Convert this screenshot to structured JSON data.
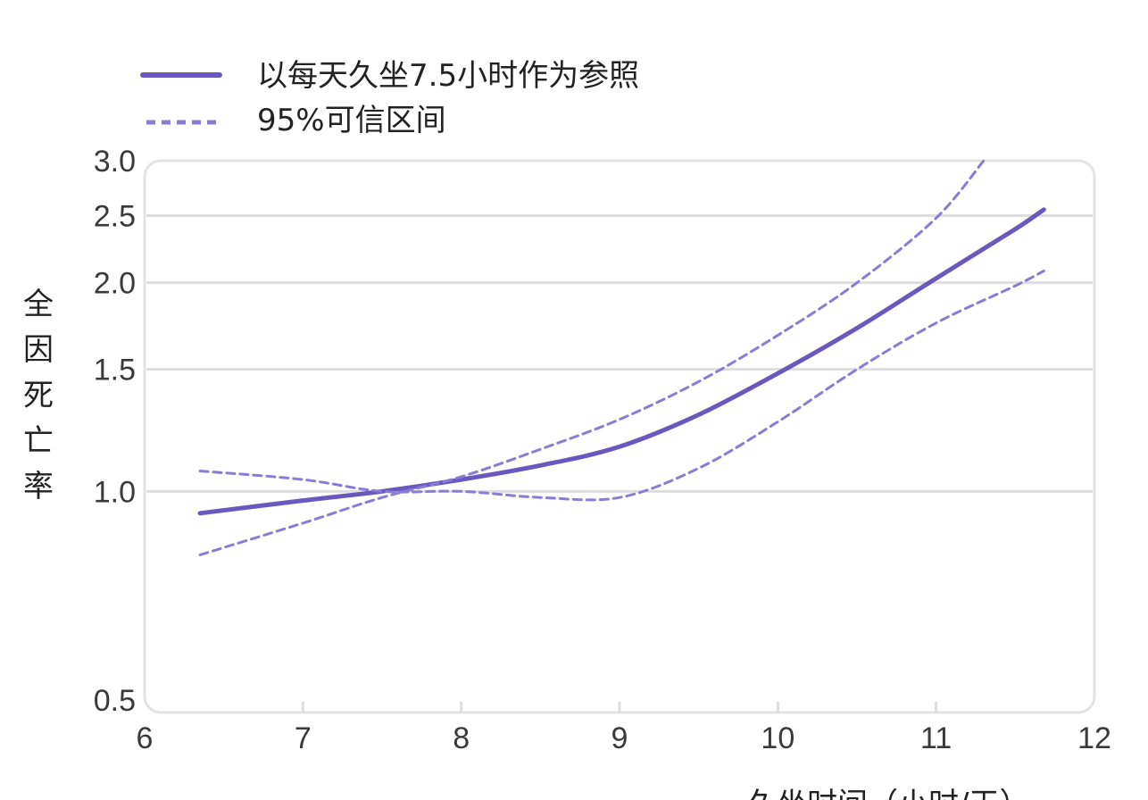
{
  "chart_data": {
    "type": "line",
    "title": "",
    "xlabel": "久坐时间（小时/天）",
    "ylabel": "全因死亡率",
    "y_scale": "log",
    "xlim": [
      6,
      12
    ],
    "ylim": [
      0.5,
      3.0
    ],
    "x_ticks": [
      "6",
      "7",
      "8",
      "9",
      "10",
      "11",
      "12"
    ],
    "y_ticks": [
      "0.5",
      "1.0",
      "1.5",
      "2.0",
      "2.5",
      "3.0"
    ],
    "legend": {
      "placement": "top-left",
      "entries": [
        "以每天久坐7.5小时作为参照",
        "95%可信区间"
      ]
    },
    "grid": "horizontal",
    "series": [
      {
        "name": "以每天久坐7.5小时作为参照",
        "style": "solid",
        "color": "#6A58BE",
        "x": [
          6.35,
          7.0,
          7.5,
          8.0,
          8.5,
          9.0,
          9.5,
          10.0,
          10.5,
          11.0,
          11.5,
          11.68
        ],
        "y": [
          0.93,
          0.97,
          1.0,
          1.04,
          1.09,
          1.16,
          1.29,
          1.48,
          1.72,
          2.03,
          2.39,
          2.55
        ]
      },
      {
        "name": "95%可信区间",
        "style": "dashed",
        "color": "#8A7CD6",
        "x": [
          6.35,
          7.0,
          7.5,
          8.0,
          8.5,
          9.0,
          9.5,
          10.0,
          10.5,
          11.0,
          11.3
        ],
        "y": [
          0.81,
          0.9,
          0.98,
          1.05,
          1.15,
          1.27,
          1.44,
          1.68,
          2.0,
          2.48,
          3.0
        ]
      },
      {
        "name": "95%可信区间",
        "style": "dashed",
        "color": "#8A7CD6",
        "x": [
          6.35,
          7.0,
          7.5,
          8.0,
          8.5,
          9.0,
          9.5,
          10.0,
          10.5,
          11.0,
          11.5,
          11.68
        ],
        "y": [
          1.07,
          1.04,
          1.0,
          1.0,
          0.98,
          0.98,
          1.08,
          1.26,
          1.5,
          1.75,
          1.98,
          2.08
        ]
      }
    ]
  }
}
